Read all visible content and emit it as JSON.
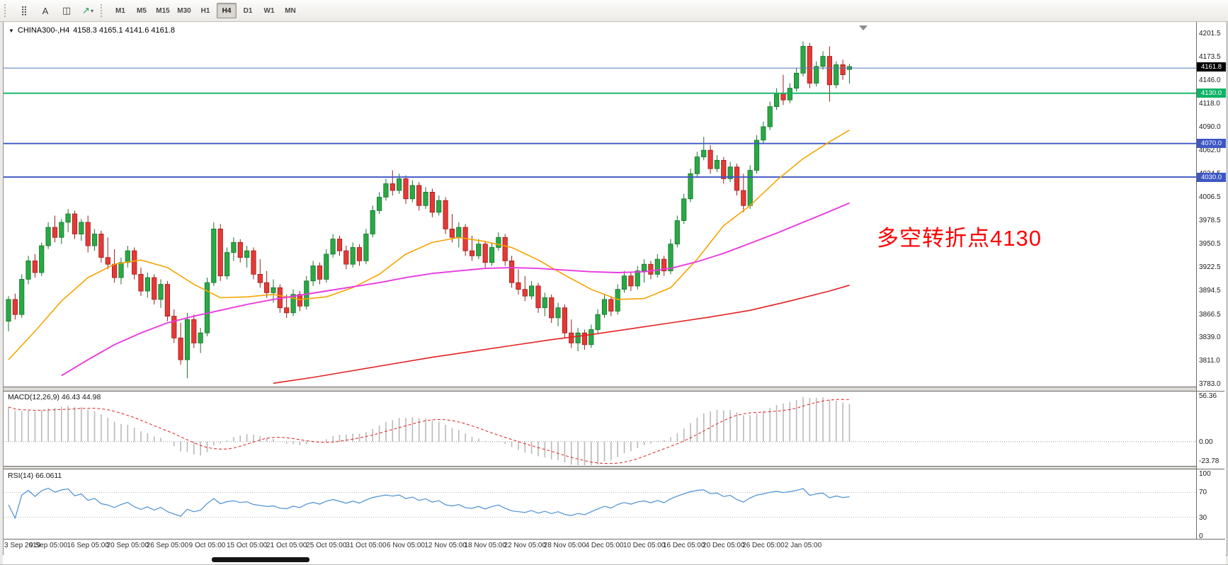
{
  "toolbar": {
    "tools": [
      {
        "name": "dots-grid-tool",
        "glyph": "⣿"
      },
      {
        "name": "text-tool",
        "glyph": "A"
      },
      {
        "name": "shapes-tool",
        "glyph": "◫"
      },
      {
        "name": "arrow-tool",
        "glyph": "↗",
        "color": "#1d9e54",
        "dropdown": "▾"
      }
    ],
    "timeframes": [
      {
        "label": "M1",
        "active": false
      },
      {
        "label": "M5",
        "active": false
      },
      {
        "label": "M15",
        "active": false
      },
      {
        "label": "M30",
        "active": false
      },
      {
        "label": "H1",
        "active": false
      },
      {
        "label": "H4",
        "active": true
      },
      {
        "label": "D1",
        "active": false
      },
      {
        "label": "W1",
        "active": false
      },
      {
        "label": "MN",
        "active": false
      }
    ]
  },
  "chart": {
    "marker": "▼",
    "symbol_label": "CHINA300-,H4",
    "ohlc_label": "4158.3 4165.1 4141.6 4161.8",
    "annotation": {
      "text": "多空转折点4130",
      "color": "#ff0000"
    },
    "current_price_tag": {
      "text": "4161.8",
      "bg": "#000000",
      "fg": "#ffffff"
    }
  },
  "indicators": {
    "macd_label": "MACD(12,26,9) 46.43 44.98",
    "macd_ticks": [
      "56.36",
      "0.00",
      "-23.78"
    ],
    "rsi_label": "RSI(14) 66.0611",
    "rsi_ticks": [
      "100",
      "70",
      "30",
      "0"
    ]
  },
  "price_axis": {
    "ticks": [
      "4201.5",
      "4173.5",
      "4146.0",
      "4118.0",
      "4090.0",
      "4062.0",
      "4034.5",
      "4006.5",
      "3978.5",
      "3950.5",
      "3922.5",
      "3894.5",
      "3866.5",
      "3839.0",
      "3811.0",
      "3783.0"
    ]
  },
  "time_axis": [
    "3 Sep 2019",
    "9 Sep 05:00",
    "16 Sep 05:00",
    "20 Sep 05:00",
    "26 Sep 05:00",
    "9 Oct 05:00",
    "15 Oct 05:00",
    "21 Oct 05:00",
    "25 Oct 05:00",
    "31 Oct 05:00",
    "6 Nov 05:00",
    "12 Nov 05:00",
    "18 Nov 05:00",
    "22 Nov 05:00",
    "28 Nov 05:00",
    "4 Dec 05:00",
    "10 Dec 05:00",
    "16 Dec 05:00",
    "20 Dec 05:00",
    "26 Dec 05:00",
    "2 Jan 05:00"
  ],
  "chart_data": {
    "type": "candlestick",
    "symbol": "CHINA300-",
    "timeframe": "H4",
    "title": "CHINA300-,H4",
    "last_ohlc": {
      "open": 4158.3,
      "high": 4165.1,
      "low": 4141.6,
      "close": 4161.8
    },
    "price_range": [
      3783.0,
      4201.5
    ],
    "bull_color": "#2aa845",
    "bear_color": "#e53935",
    "candles": [
      [
        3858,
        3888,
        3846,
        3884
      ],
      [
        3884,
        3891,
        3860,
        3866
      ],
      [
        3866,
        3914,
        3862,
        3908
      ],
      [
        3908,
        3936,
        3902,
        3930
      ],
      [
        3930,
        3938,
        3910,
        3916
      ],
      [
        3916,
        3952,
        3912,
        3948
      ],
      [
        3948,
        3976,
        3944,
        3970
      ],
      [
        3970,
        3984,
        3952,
        3958
      ],
      [
        3958,
        3980,
        3950,
        3976
      ],
      [
        3976,
        3992,
        3964,
        3986
      ],
      [
        3986,
        3990,
        3956,
        3962
      ],
      [
        3962,
        3980,
        3954,
        3976
      ],
      [
        3976,
        3984,
        3940,
        3948
      ],
      [
        3948,
        3968,
        3942,
        3962
      ],
      [
        3962,
        3966,
        3928,
        3934
      ],
      [
        3934,
        3958,
        3920,
        3926
      ],
      [
        3926,
        3944,
        3904,
        3910
      ],
      [
        3910,
        3934,
        3902,
        3928
      ],
      [
        3928,
        3948,
        3922,
        3942
      ],
      [
        3942,
        3946,
        3908,
        3914
      ],
      [
        3914,
        3922,
        3888,
        3894
      ],
      [
        3894,
        3916,
        3886,
        3910
      ],
      [
        3910,
        3914,
        3878,
        3884
      ],
      [
        3884,
        3908,
        3874,
        3902
      ],
      [
        3902,
        3906,
        3858,
        3864
      ],
      [
        3864,
        3872,
        3832,
        3838
      ],
      [
        3838,
        3856,
        3806,
        3812
      ],
      [
        3812,
        3868,
        3790,
        3860
      ],
      [
        3860,
        3866,
        3826,
        3832
      ],
      [
        3832,
        3850,
        3820,
        3844
      ],
      [
        3844,
        3910,
        3840,
        3904
      ],
      [
        3904,
        3976,
        3900,
        3968
      ],
      [
        3968,
        3974,
        3906,
        3912
      ],
      [
        3912,
        3946,
        3908,
        3940
      ],
      [
        3940,
        3958,
        3930,
        3952
      ],
      [
        3952,
        3956,
        3928,
        3934
      ],
      [
        3934,
        3948,
        3922,
        3942
      ],
      [
        3942,
        3946,
        3908,
        3914
      ],
      [
        3914,
        3932,
        3898,
        3904
      ],
      [
        3904,
        3918,
        3886,
        3892
      ],
      [
        3892,
        3908,
        3880,
        3898
      ],
      [
        3898,
        3902,
        3868,
        3874
      ],
      [
        3874,
        3890,
        3862,
        3868
      ],
      [
        3868,
        3896,
        3864,
        3890
      ],
      [
        3890,
        3894,
        3870,
        3876
      ],
      [
        3876,
        3912,
        3872,
        3906
      ],
      [
        3906,
        3930,
        3900,
        3924
      ],
      [
        3924,
        3928,
        3902,
        3908
      ],
      [
        3908,
        3944,
        3904,
        3938
      ],
      [
        3938,
        3962,
        3934,
        3956
      ],
      [
        3956,
        3960,
        3936,
        3942
      ],
      [
        3942,
        3948,
        3920,
        3926
      ],
      [
        3926,
        3952,
        3922,
        3946
      ],
      [
        3946,
        3950,
        3924,
        3930
      ],
      [
        3930,
        3968,
        3926,
        3962
      ],
      [
        3962,
        3996,
        3958,
        3990
      ],
      [
        3990,
        4012,
        3986,
        4006
      ],
      [
        4006,
        4028,
        4002,
        4022
      ],
      [
        4022,
        4038,
        4008,
        4014
      ],
      [
        4014,
        4034,
        4010,
        4028
      ],
      [
        4028,
        4032,
        3998,
        4004
      ],
      [
        4004,
        4026,
        4000,
        4020
      ],
      [
        4020,
        4024,
        3990,
        3996
      ],
      [
        3996,
        4018,
        3992,
        4012
      ],
      [
        4012,
        4016,
        3982,
        3988
      ],
      [
        3988,
        4008,
        3984,
        4002
      ],
      [
        4002,
        4006,
        3962,
        3968
      ],
      [
        3968,
        3986,
        3952,
        3958
      ],
      [
        3958,
        3976,
        3946,
        3970
      ],
      [
        3970,
        3974,
        3936,
        3942
      ],
      [
        3942,
        3960,
        3930,
        3936
      ],
      [
        3936,
        3956,
        3932,
        3950
      ],
      [
        3950,
        3954,
        3922,
        3928
      ],
      [
        3928,
        3952,
        3924,
        3946
      ],
      [
        3946,
        3964,
        3942,
        3958
      ],
      [
        3958,
        3962,
        3924,
        3930
      ],
      [
        3930,
        3936,
        3898,
        3904
      ],
      [
        3904,
        3920,
        3890,
        3896
      ],
      [
        3896,
        3912,
        3882,
        3888
      ],
      [
        3888,
        3906,
        3884,
        3900
      ],
      [
        3900,
        3904,
        3868,
        3874
      ],
      [
        3874,
        3892,
        3864,
        3886
      ],
      [
        3886,
        3890,
        3856,
        3862
      ],
      [
        3862,
        3880,
        3852,
        3874
      ],
      [
        3874,
        3878,
        3838,
        3844
      ],
      [
        3844,
        3860,
        3826,
        3832
      ],
      [
        3832,
        3850,
        3822,
        3844
      ],
      [
        3844,
        3848,
        3824,
        3830
      ],
      [
        3830,
        3854,
        3826,
        3848
      ],
      [
        3848,
        3872,
        3844,
        3866
      ],
      [
        3866,
        3890,
        3862,
        3884
      ],
      [
        3884,
        3888,
        3864,
        3870
      ],
      [
        3870,
        3902,
        3866,
        3896
      ],
      [
        3896,
        3918,
        3892,
        3912
      ],
      [
        3912,
        3916,
        3894,
        3900
      ],
      [
        3900,
        3924,
        3896,
        3918
      ],
      [
        3918,
        3932,
        3904,
        3926
      ],
      [
        3926,
        3930,
        3908,
        3914
      ],
      [
        3914,
        3938,
        3910,
        3932
      ],
      [
        3932,
        3936,
        3912,
        3918
      ],
      [
        3918,
        3956,
        3914,
        3950
      ],
      [
        3950,
        3984,
        3946,
        3978
      ],
      [
        3978,
        4010,
        3974,
        4004
      ],
      [
        4004,
        4040,
        4000,
        4034
      ],
      [
        4034,
        4060,
        4030,
        4054
      ],
      [
        4054,
        4078,
        4050,
        4062
      ],
      [
        4062,
        4068,
        4034,
        4040
      ],
      [
        4040,
        4056,
        4036,
        4050
      ],
      [
        4050,
        4054,
        4022,
        4028
      ],
      [
        4028,
        4048,
        4024,
        4042
      ],
      [
        4042,
        4046,
        4008,
        4014
      ],
      [
        4014,
        4034,
        3988,
        3996
      ],
      [
        3996,
        4044,
        3992,
        4038
      ],
      [
        4038,
        4080,
        4034,
        4074
      ],
      [
        4074,
        4096,
        4070,
        4090
      ],
      [
        4090,
        4120,
        4086,
        4114
      ],
      [
        4114,
        4136,
        4110,
        4130
      ],
      [
        4130,
        4152,
        4116,
        4122
      ],
      [
        4122,
        4142,
        4118,
        4136
      ],
      [
        4136,
        4160,
        4132,
        4154
      ],
      [
        4154,
        4192,
        4150,
        4186
      ],
      [
        4186,
        4190,
        4136,
        4142
      ],
      [
        4142,
        4168,
        4138,
        4162
      ],
      [
        4162,
        4180,
        4158,
        4174
      ],
      [
        4174,
        4186,
        4120,
        4140
      ],
      [
        4140,
        4168,
        4136,
        4164
      ],
      [
        4164,
        4170,
        4146,
        4152
      ],
      [
        4158.3,
        4165.1,
        4141.6,
        4161.8
      ]
    ],
    "ma_lines": [
      {
        "name": "ma-fast-orange",
        "color": "#f5a400",
        "width": 1.6,
        "points": [
          [
            0,
            3812
          ],
          [
            4,
            3846
          ],
          [
            8,
            3882
          ],
          [
            12,
            3910
          ],
          [
            16,
            3926
          ],
          [
            20,
            3931
          ],
          [
            24,
            3922
          ],
          [
            28,
            3902
          ],
          [
            32,
            3886
          ],
          [
            36,
            3887
          ],
          [
            40,
            3890
          ],
          [
            44,
            3884
          ],
          [
            48,
            3887
          ],
          [
            52,
            3898
          ],
          [
            56,
            3914
          ],
          [
            60,
            3938
          ],
          [
            64,
            3952
          ],
          [
            68,
            3958
          ],
          [
            72,
            3953
          ],
          [
            76,
            3946
          ],
          [
            80,
            3931
          ],
          [
            84,
            3913
          ],
          [
            88,
            3896
          ],
          [
            92,
            3884
          ],
          [
            96,
            3885
          ],
          [
            100,
            3898
          ],
          [
            104,
            3932
          ],
          [
            108,
            3972
          ],
          [
            112,
            3996
          ],
          [
            116,
            4026
          ],
          [
            120,
            4052
          ],
          [
            124,
            4072
          ],
          [
            127,
            4086
          ]
        ]
      },
      {
        "name": "ma-mid-magenta",
        "color": "#e83ae0",
        "width": 1.9,
        "points": [
          [
            8,
            3793
          ],
          [
            12,
            3812
          ],
          [
            16,
            3830
          ],
          [
            20,
            3844
          ],
          [
            24,
            3856
          ],
          [
            28,
            3864
          ],
          [
            32,
            3871
          ],
          [
            36,
            3878
          ],
          [
            40,
            3884
          ],
          [
            44,
            3889
          ],
          [
            48,
            3894
          ],
          [
            52,
            3899
          ],
          [
            56,
            3904
          ],
          [
            60,
            3910
          ],
          [
            64,
            3915
          ],
          [
            68,
            3918
          ],
          [
            72,
            3921
          ],
          [
            76,
            3922
          ],
          [
            80,
            3921
          ],
          [
            84,
            3919
          ],
          [
            88,
            3917
          ],
          [
            92,
            3916
          ],
          [
            96,
            3917
          ],
          [
            100,
            3921
          ],
          [
            104,
            3929
          ],
          [
            108,
            3939
          ],
          [
            112,
            3951
          ],
          [
            116,
            3963
          ],
          [
            120,
            3976
          ],
          [
            124,
            3989
          ],
          [
            127,
            3999
          ]
        ]
      },
      {
        "name": "ma-slow-red",
        "color": "#e32020",
        "width": 1.6,
        "points": [
          [
            40,
            3784
          ],
          [
            46,
            3791
          ],
          [
            52,
            3799
          ],
          [
            58,
            3807
          ],
          [
            64,
            3815
          ],
          [
            70,
            3822
          ],
          [
            76,
            3829
          ],
          [
            82,
            3836
          ],
          [
            88,
            3842
          ],
          [
            94,
            3849
          ],
          [
            100,
            3856
          ],
          [
            106,
            3863
          ],
          [
            112,
            3871
          ],
          [
            118,
            3882
          ],
          [
            124,
            3894
          ],
          [
            127,
            3901
          ]
        ]
      }
    ],
    "hlines": [
      {
        "price": 4160.0,
        "color": "#5577bb",
        "width": 1,
        "tag": null
      },
      {
        "price": 4130.0,
        "color": "#0db365",
        "width": 1.8,
        "tag": "4130.0"
      },
      {
        "price": 4070.0,
        "color": "#3d56c4",
        "width": 1.8,
        "tag": "4070.0"
      },
      {
        "price": 4030.0,
        "color": "#3d56c4",
        "width": 1.8,
        "tag": "4030.0"
      }
    ],
    "macd": {
      "params": [
        12,
        26,
        9
      ],
      "value": 46.43,
      "signal": 44.98,
      "axis": [
        56.36,
        0.0,
        -23.78
      ],
      "histogram_color": "#b9b9b9",
      "signal_color": "#e23333"
    },
    "rsi": {
      "period": 14,
      "value": 66.0611,
      "levels": [
        70,
        30
      ],
      "axis": [
        100,
        70,
        30,
        0
      ],
      "line_color": "#4a8fd4"
    }
  }
}
